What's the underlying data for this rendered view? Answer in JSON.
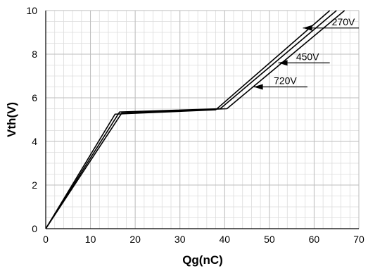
{
  "chart_data": {
    "type": "line",
    "title": "",
    "xlabel": "Qg(nC)",
    "ylabel": "Vth(V)",
    "xlim": [
      0,
      70
    ],
    "ylim": [
      0,
      10
    ],
    "x_ticks": [
      0,
      10,
      20,
      30,
      40,
      50,
      60,
      70
    ],
    "y_ticks": [
      0,
      2,
      4,
      6,
      8,
      10
    ],
    "x_tick_labels": [
      "0",
      "10",
      "20",
      "30",
      "40",
      "50",
      "60",
      "70"
    ],
    "y_tick_labels": [
      "0",
      "2",
      "4",
      "6",
      "8",
      "10"
    ],
    "grid": true,
    "minor_grid": true,
    "series": [
      {
        "name": "270V",
        "points": [
          [
            0,
            0
          ],
          [
            15.5,
            5.25
          ],
          [
            38,
            5.45
          ],
          [
            63.5,
            10
          ]
        ]
      },
      {
        "name": "450V",
        "points": [
          [
            0,
            0
          ],
          [
            16.5,
            5.35
          ],
          [
            39,
            5.5
          ],
          [
            65,
            10
          ]
        ]
      },
      {
        "name": "720V",
        "points": [
          [
            0,
            0
          ],
          [
            17,
            5.3
          ],
          [
            40.5,
            5.5
          ],
          [
            66.8,
            10
          ]
        ]
      }
    ],
    "annotations": [
      {
        "text": "270V",
        "label_x": 63.5,
        "label_y": 9.2,
        "arrow_to": [
          57.5,
          9.2
        ],
        "line_to": 70
      },
      {
        "text": "450V",
        "label_x": 55.5,
        "label_y": 7.6,
        "arrow_to": [
          52,
          7.6
        ],
        "line_to": 63.5
      },
      {
        "text": "720V",
        "label_x": 50.5,
        "label_y": 6.5,
        "arrow_to": [
          46.5,
          6.5
        ],
        "line_to": 58.5
      }
    ],
    "colors": {
      "line": "#000000",
      "grid_major": "#bdbdbd",
      "grid_minor": "#dcdcdc",
      "axis": "#000000",
      "text": "#000000"
    }
  }
}
